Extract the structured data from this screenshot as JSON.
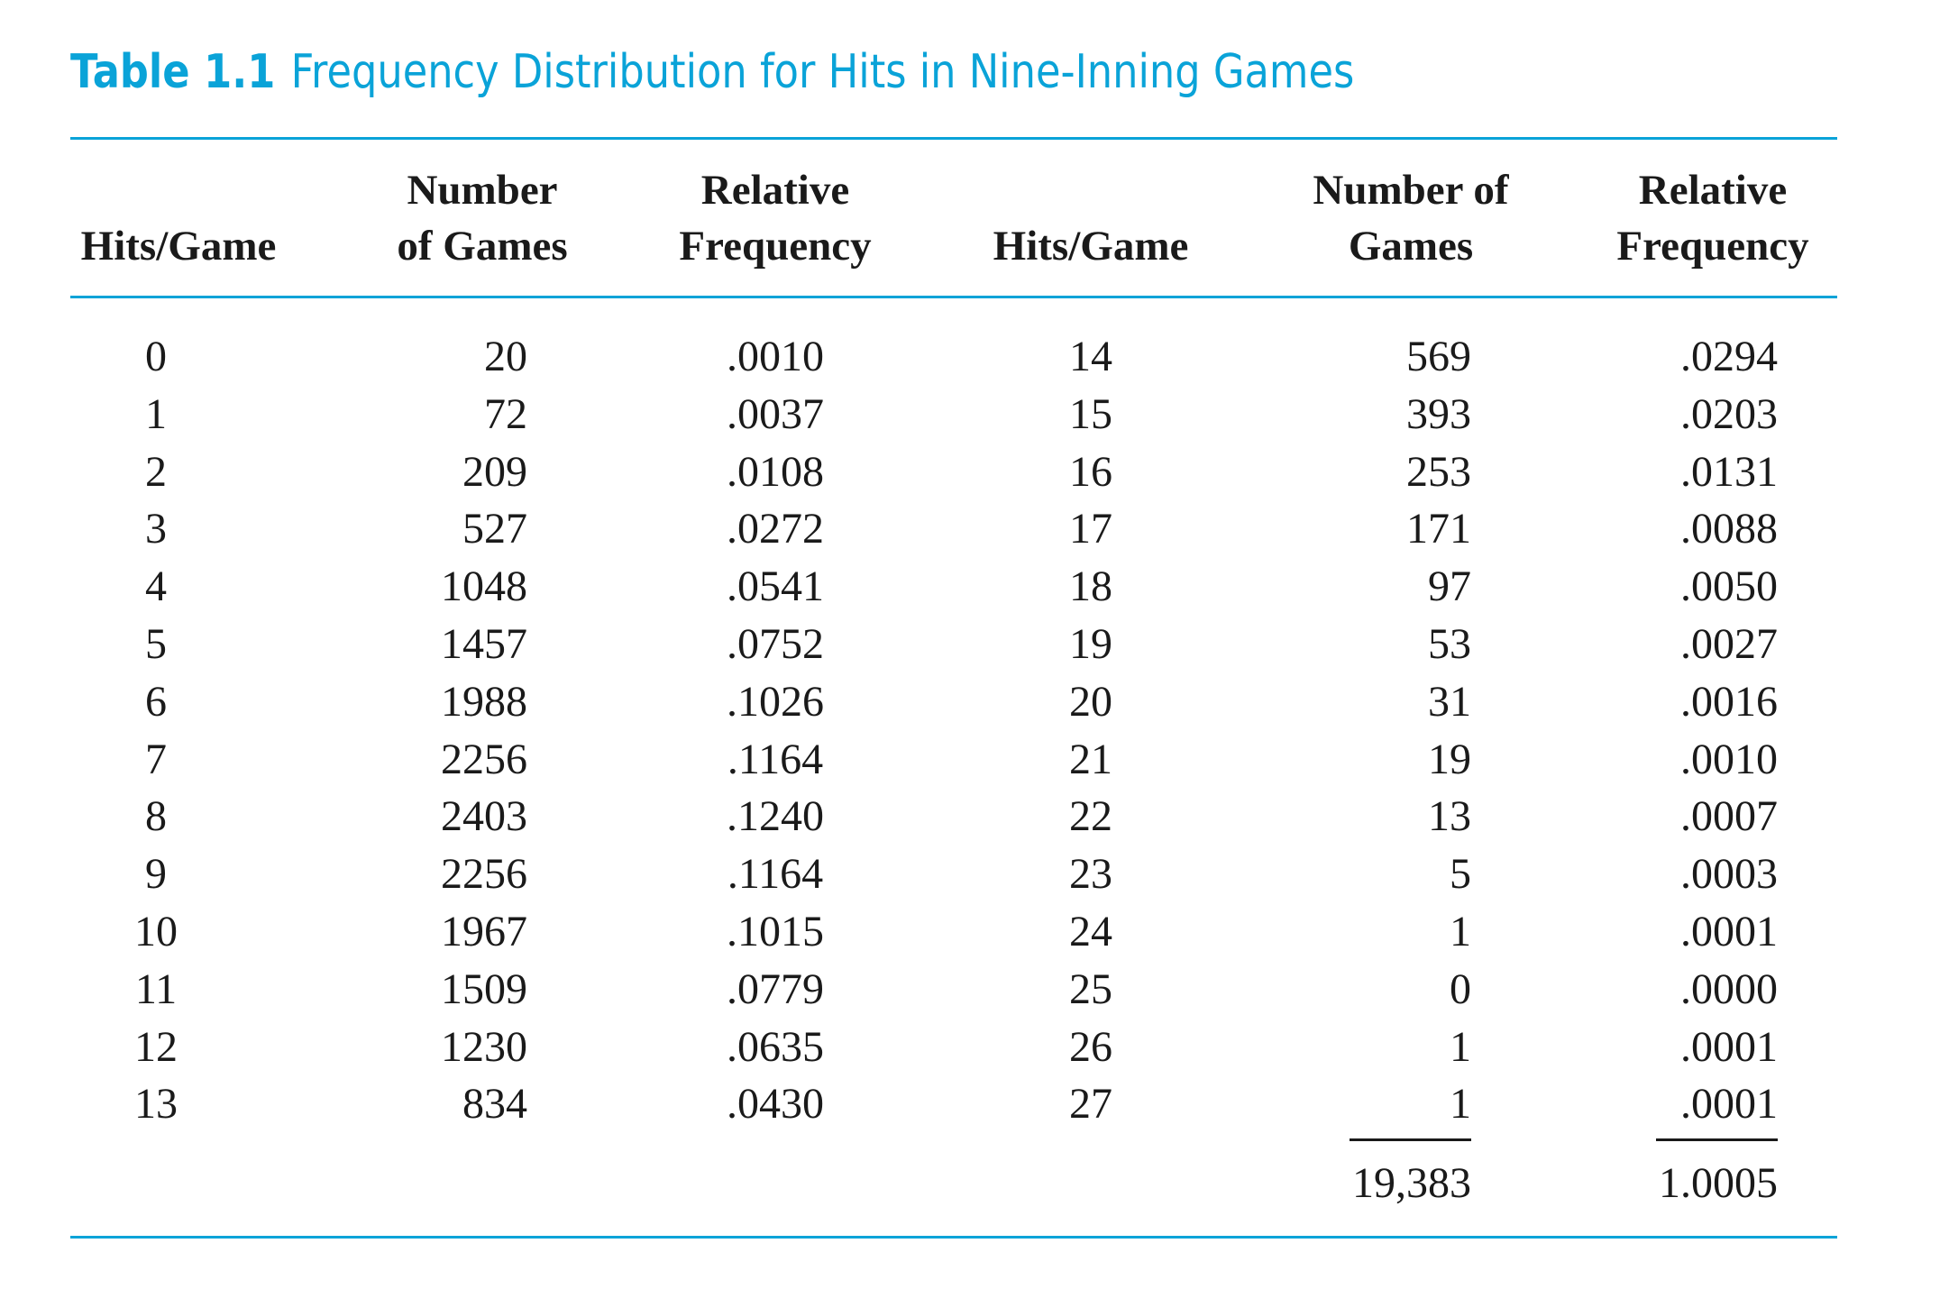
{
  "caption": {
    "label": "Table 1.1",
    "title": "Frequency Distribution for Hits in Nine-Inning Games"
  },
  "headers": {
    "left": {
      "hits": [
        "Hits/Game"
      ],
      "games": [
        "Number",
        "of Games"
      ],
      "rel": [
        "Relative",
        "Frequency"
      ]
    },
    "right": {
      "hits": [
        "Hits/Game"
      ],
      "games": [
        "Number of",
        "Games"
      ],
      "rel": [
        "Relative",
        "Frequency"
      ]
    }
  },
  "left_rows": [
    {
      "hits": "0",
      "games": "20",
      "rel": ".0010"
    },
    {
      "hits": "1",
      "games": "72",
      "rel": ".0037"
    },
    {
      "hits": "2",
      "games": "209",
      "rel": ".0108"
    },
    {
      "hits": "3",
      "games": "527",
      "rel": ".0272"
    },
    {
      "hits": "4",
      "games": "1048",
      "rel": ".0541"
    },
    {
      "hits": "5",
      "games": "1457",
      "rel": ".0752"
    },
    {
      "hits": "6",
      "games": "1988",
      "rel": ".1026"
    },
    {
      "hits": "7",
      "games": "2256",
      "rel": ".1164"
    },
    {
      "hits": "8",
      "games": "2403",
      "rel": ".1240"
    },
    {
      "hits": "9",
      "games": "2256",
      "rel": ".1164"
    },
    {
      "hits": "10",
      "games": "1967",
      "rel": ".1015"
    },
    {
      "hits": "11",
      "games": "1509",
      "rel": ".0779"
    },
    {
      "hits": "12",
      "games": "1230",
      "rel": ".0635"
    },
    {
      "hits": "13",
      "games": "834",
      "rel": ".0430"
    }
  ],
  "right_rows": [
    {
      "hits": "14",
      "games": "569",
      "rel": ".0294"
    },
    {
      "hits": "15",
      "games": "393",
      "rel": ".0203"
    },
    {
      "hits": "16",
      "games": "253",
      "rel": ".0131"
    },
    {
      "hits": "17",
      "games": "171",
      "rel": ".0088"
    },
    {
      "hits": "18",
      "games": "97",
      "rel": ".0050"
    },
    {
      "hits": "19",
      "games": "53",
      "rel": ".0027"
    },
    {
      "hits": "20",
      "games": "31",
      "rel": ".0016"
    },
    {
      "hits": "21",
      "games": "19",
      "rel": ".0010"
    },
    {
      "hits": "22",
      "games": "13",
      "rel": ".0007"
    },
    {
      "hits": "23",
      "games": "5",
      "rel": ".0003"
    },
    {
      "hits": "24",
      "games": "1",
      "rel": ".0001"
    },
    {
      "hits": "25",
      "games": "0",
      "rel": ".0000"
    },
    {
      "hits": "26",
      "games": "1",
      "rel": ".0001"
    },
    {
      "hits": "27",
      "games": "1",
      "rel": ".0001"
    }
  ],
  "totals": {
    "games": "19,383",
    "rel": "1.0005"
  },
  "colors": {
    "accent": "#0aa3d8",
    "text": "#1a1a1a"
  }
}
